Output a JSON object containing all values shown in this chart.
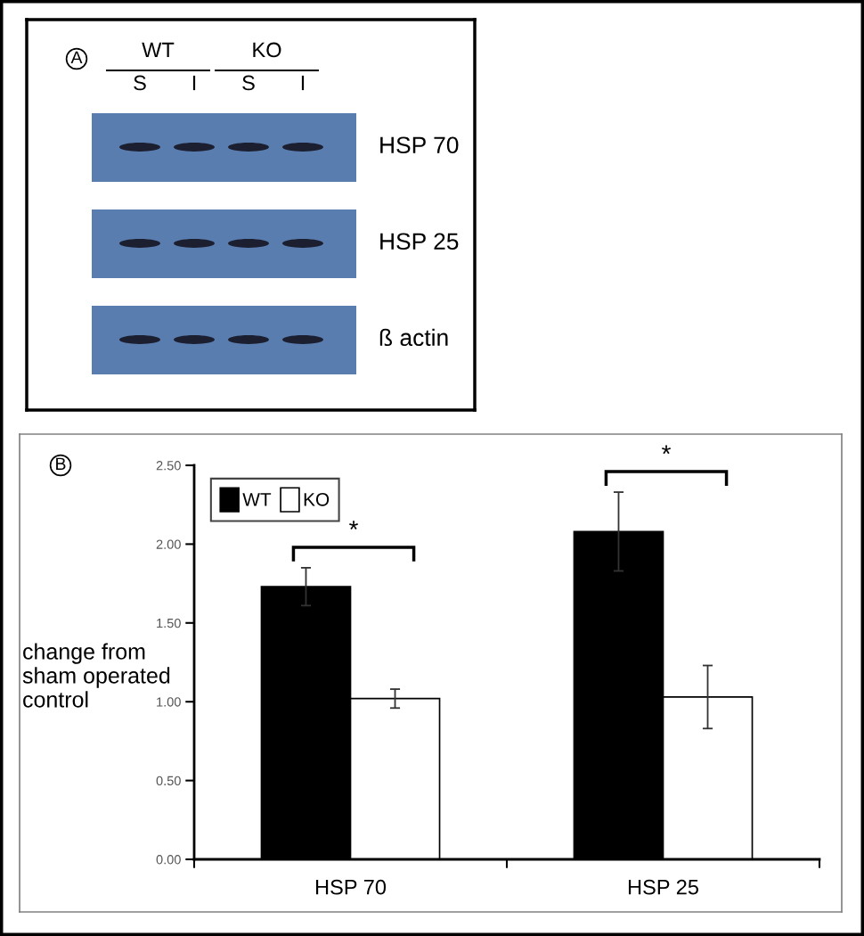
{
  "chart_data": [
    {
      "type": "other",
      "title": "A",
      "categories": [
        "S",
        "I",
        "S",
        "I"
      ],
      "y_categories": [
        "HSP 70",
        "HSP 25",
        "ß actin"
      ],
      "annotations": [
        "WT",
        "KO"
      ]
    },
    {
      "type": "bar",
      "title": "B",
      "categories": [
        "HSP 70",
        "HSP 25"
      ],
      "series": [
        {
          "name": "WT",
          "color": "#000000",
          "values": [
            1.73,
            2.08
          ],
          "errors": [
            0.12,
            0.25
          ]
        },
        {
          "name": "KO",
          "color": "#ffffff",
          "values": [
            1.02,
            1.03
          ],
          "errors": [
            0.06,
            0.2
          ]
        }
      ],
      "ylabel": "change from\nsham operated\ncontrol",
      "ylim": [
        0,
        2.5
      ],
      "yticks": [
        {
          "value": 0,
          "label": "0.00"
        },
        {
          "value": 0.5,
          "label": "0.50"
        },
        {
          "value": 1,
          "label": "1.00"
        },
        {
          "value": 1.5,
          "label": "1.50"
        },
        {
          "value": 2,
          "label": "2.00"
        },
        {
          "value": 2.5,
          "label": "2.50"
        }
      ],
      "legend": "top left",
      "annotations": [
        "*",
        "*"
      ]
    }
  ]
}
